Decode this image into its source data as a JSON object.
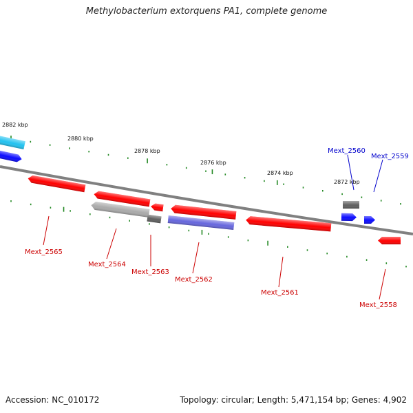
{
  "title": "Methylobacterium extorquens PA1, complete genome",
  "footer": {
    "accession": "Accession: NC_010172",
    "summary": "Topology: circular; Length: 5,471,154 bp; Genes: 4,902"
  },
  "colors": {
    "forward_cds": "#0b0bff",
    "reverse_cds": "#ff0000",
    "forward_other": "#22c2f0",
    "reverse_other": "#aaaaaa",
    "hypothetical": "#6666dd",
    "rna": "#606060",
    "backbone": "#808080",
    "ticks": "#228822",
    "forward_label": "#0000cc",
    "reverse_label": "#cc0000"
  },
  "scale": {
    "unit": "kbp",
    "labels": [
      "2882 kbp",
      "2880 kbp",
      "2878 kbp",
      "2876 kbp",
      "2874 kbp",
      "2872 kbp"
    ]
  },
  "genes": {
    "forward": [
      "Mext_2560",
      "Mext_2559"
    ],
    "reverse": [
      "Mext_2565",
      "Mext_2564",
      "Mext_2563",
      "Mext_2562",
      "Mext_2561",
      "Mext_2558"
    ]
  }
}
